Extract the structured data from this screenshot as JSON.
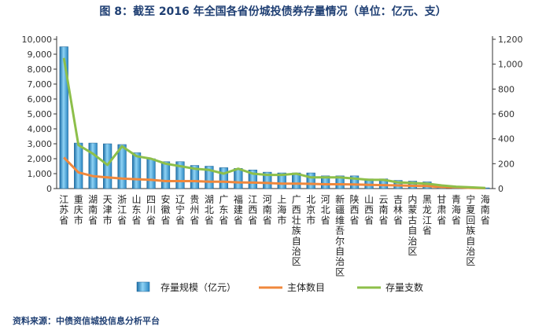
{
  "title": "图 8：截至 2016 年全国各省份城投债券存量情况（单位：亿元、支）",
  "source": "资料来源：中债资信城投信息分析平台",
  "chart_data": {
    "type": "bar",
    "categories": [
      "江苏省",
      "重庆市",
      "湖南省",
      "天津市",
      "浙江省",
      "山东省",
      "四川省",
      "安徽省",
      "辽宁省",
      "贵州省",
      "湖北省",
      "广东省",
      "福建省",
      "江西省",
      "河南省",
      "上海市",
      "广西壮族自治区",
      "北京市",
      "河北省",
      "新疆维吾尔自治区",
      "陕西省",
      "山西省",
      "云南省",
      "吉林省",
      "内蒙古自治区",
      "黑龙江省",
      "甘肃省",
      "青海省",
      "宁夏回族自治区",
      "海南省"
    ],
    "yleft": {
      "ylim": [
        0,
        10000
      ],
      "ticks": [
        "0",
        "1,000",
        "2,000",
        "3,000",
        "4,000",
        "5,000",
        "6,000",
        "7,000",
        "8,000",
        "9,000",
        "10,000"
      ]
    },
    "yright": {
      "ylim": [
        0,
        1200
      ],
      "ticks": [
        "0",
        "200",
        "400",
        "600",
        "800",
        "1,000",
        "1,200"
      ]
    },
    "series": [
      {
        "name": "存量规模（亿元）",
        "type": "bar",
        "axis": "left",
        "color": "#3a9fd4",
        "values": [
          9500,
          3050,
          3050,
          3000,
          2950,
          2400,
          2000,
          1800,
          1800,
          1550,
          1500,
          1400,
          1350,
          1250,
          1100,
          1050,
          1050,
          1050,
          850,
          850,
          850,
          650,
          650,
          550,
          500,
          450,
          250,
          150,
          100,
          50
        ]
      },
      {
        "name": "主体数目",
        "type": "line",
        "axis": "right",
        "color": "#f0883c",
        "values": [
          250,
          130,
          100,
          90,
          80,
          75,
          70,
          60,
          60,
          60,
          55,
          55,
          50,
          48,
          45,
          40,
          40,
          38,
          35,
          35,
          33,
          30,
          28,
          25,
          22,
          20,
          12,
          10,
          6,
          3
        ]
      },
      {
        "name": "存量支数",
        "type": "line",
        "axis": "right",
        "color": "#8dbf4a",
        "values": [
          1050,
          350,
          280,
          190,
          340,
          260,
          240,
          200,
          180,
          160,
          150,
          120,
          160,
          120,
          110,
          110,
          120,
          90,
          90,
          90,
          80,
          70,
          70,
          50,
          45,
          40,
          25,
          15,
          10,
          5
        ]
      }
    ]
  }
}
